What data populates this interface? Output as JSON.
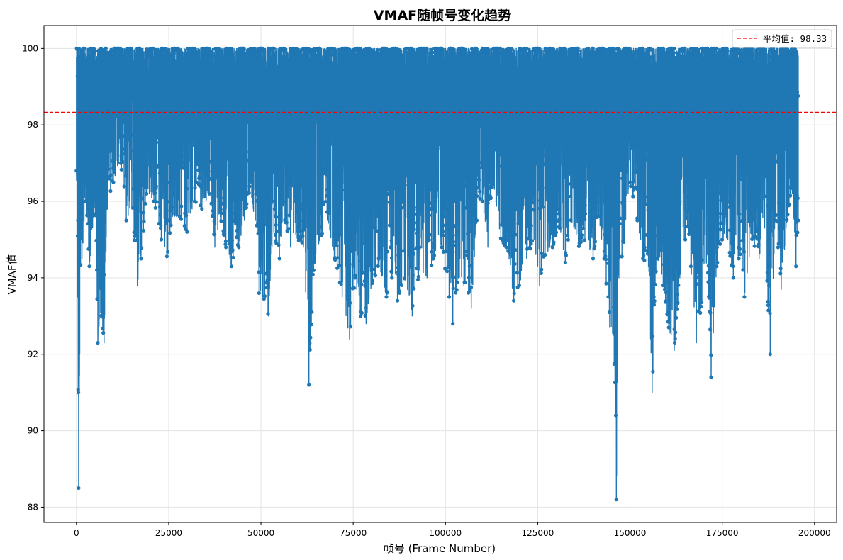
{
  "chart_data": {
    "type": "line",
    "title": "VMAF随帧号变化趋势",
    "xlabel": "帧号 (Frame Number)",
    "ylabel": "VMAF值",
    "xlim": [
      -8800,
      206000
    ],
    "ylim": [
      87.6,
      100.6
    ],
    "x_ticks": [
      0,
      25000,
      50000,
      75000,
      100000,
      125000,
      150000,
      175000,
      200000
    ],
    "y_ticks": [
      88,
      90,
      92,
      94,
      96,
      98,
      100
    ],
    "x_tick_labels": [
      "0",
      "25000",
      "50000",
      "75000",
      "100000",
      "125000",
      "150000",
      "175000",
      "200000"
    ],
    "y_tick_labels": [
      "88",
      "90",
      "92",
      "94",
      "96",
      "98",
      "100"
    ],
    "grid": true,
    "legend_position": "upper right",
    "series": [
      {
        "color": "#1f77b4",
        "marker": "circle",
        "x_range": [
          0,
          195600
        ],
        "value_range": [
          88.2,
          100
        ],
        "envelope_min": [
          [
            0,
            96.8
          ],
          [
            300,
            93.5
          ],
          [
            600,
            88.5
          ],
          [
            900,
            92.0
          ],
          [
            1500,
            94.5
          ],
          [
            2500,
            96.0
          ],
          [
            3500,
            94.3
          ],
          [
            5000,
            96.0
          ],
          [
            5800,
            92.3
          ],
          [
            6800,
            93.0
          ],
          [
            7500,
            92.3
          ],
          [
            8500,
            95.8
          ],
          [
            10000,
            96.5
          ],
          [
            12000,
            97.0
          ],
          [
            13500,
            95.5
          ],
          [
            15000,
            95.8
          ],
          [
            16500,
            93.8
          ],
          [
            17500,
            94.5
          ],
          [
            19000,
            96.2
          ],
          [
            21000,
            96.0
          ],
          [
            23000,
            95.0
          ],
          [
            24500,
            94.5
          ],
          [
            26000,
            95.6
          ],
          [
            28000,
            95.6
          ],
          [
            30000,
            95.2
          ],
          [
            32000,
            96.0
          ],
          [
            34000,
            95.8
          ],
          [
            36000,
            96.2
          ],
          [
            37500,
            94.8
          ],
          [
            39000,
            95.6
          ],
          [
            40500,
            94.8
          ],
          [
            42000,
            94.3
          ],
          [
            44000,
            94.8
          ],
          [
            45500,
            95.5
          ],
          [
            47000,
            96.2
          ],
          [
            48500,
            95.5
          ],
          [
            49500,
            93.6
          ],
          [
            50500,
            93.5
          ],
          [
            52000,
            93.0
          ],
          [
            53500,
            95.2
          ],
          [
            55000,
            94.5
          ],
          [
            56500,
            95.5
          ],
          [
            58000,
            94.8
          ],
          [
            60000,
            95.0
          ],
          [
            61500,
            94.8
          ],
          [
            63000,
            91.2
          ],
          [
            64500,
            94.5
          ],
          [
            66000,
            95.0
          ],
          [
            68000,
            95.5
          ],
          [
            70000,
            94.5
          ],
          [
            72000,
            93.5
          ],
          [
            74000,
            92.4
          ],
          [
            75500,
            94.0
          ],
          [
            77000,
            93.0
          ],
          [
            78500,
            92.8
          ],
          [
            80000,
            93.8
          ],
          [
            82000,
            94.3
          ],
          [
            84000,
            93.5
          ],
          [
            85500,
            94.0
          ],
          [
            87000,
            93.4
          ],
          [
            89000,
            94.0
          ],
          [
            91000,
            93.0
          ],
          [
            93000,
            94.2
          ],
          [
            95000,
            94.0
          ],
          [
            97000,
            94.5
          ],
          [
            99000,
            94.8
          ],
          [
            101000,
            93.5
          ],
          [
            102000,
            92.8
          ],
          [
            103500,
            94.0
          ],
          [
            105000,
            93.8
          ],
          [
            107000,
            93.2
          ],
          [
            108500,
            95.5
          ],
          [
            110000,
            96.0
          ],
          [
            111500,
            94.8
          ],
          [
            113000,
            96.5
          ],
          [
            115000,
            95.0
          ],
          [
            117000,
            94.7
          ],
          [
            118500,
            93.4
          ],
          [
            120000,
            93.8
          ],
          [
            122000,
            94.5
          ],
          [
            124000,
            95.0
          ],
          [
            125500,
            93.8
          ],
          [
            127000,
            94.6
          ],
          [
            129000,
            94.8
          ],
          [
            131000,
            95.3
          ],
          [
            132500,
            94.4
          ],
          [
            134000,
            95.5
          ],
          [
            136000,
            94.8
          ],
          [
            138000,
            95.0
          ],
          [
            140000,
            94.5
          ],
          [
            141500,
            95.6
          ],
          [
            143000,
            94.5
          ],
          [
            144500,
            92.7
          ],
          [
            145500,
            92.5
          ],
          [
            146300,
            88.2
          ],
          [
            147000,
            94.0
          ],
          [
            148500,
            95.0
          ],
          [
            150000,
            96.5
          ],
          [
            152000,
            95.5
          ],
          [
            153500,
            94.5
          ],
          [
            155000,
            94.3
          ],
          [
            156000,
            91.0
          ],
          [
            157500,
            94.5
          ],
          [
            159000,
            93.8
          ],
          [
            160500,
            92.7
          ],
          [
            162000,
            92.1
          ],
          [
            163500,
            94.0
          ],
          [
            165000,
            95.0
          ],
          [
            166500,
            94.3
          ],
          [
            168000,
            92.3
          ],
          [
            169500,
            93.4
          ],
          [
            171000,
            94.6
          ],
          [
            172000,
            91.4
          ],
          [
            173500,
            94.3
          ],
          [
            175000,
            95.0
          ],
          [
            176500,
            95.0
          ],
          [
            178000,
            94.0
          ],
          [
            179500,
            94.5
          ],
          [
            181000,
            93.5
          ],
          [
            183000,
            95.0
          ],
          [
            185000,
            94.5
          ],
          [
            186500,
            95.3
          ],
          [
            188000,
            92.0
          ],
          [
            189500,
            95.5
          ],
          [
            191000,
            93.7
          ],
          [
            192500,
            95.5
          ],
          [
            194000,
            96.2
          ],
          [
            195000,
            94.3
          ],
          [
            195600,
            95.5
          ]
        ]
      }
    ],
    "hline": {
      "y": 98.33,
      "color": "#ff0000",
      "style": "dashed",
      "label": "平均值: 98.33"
    }
  }
}
